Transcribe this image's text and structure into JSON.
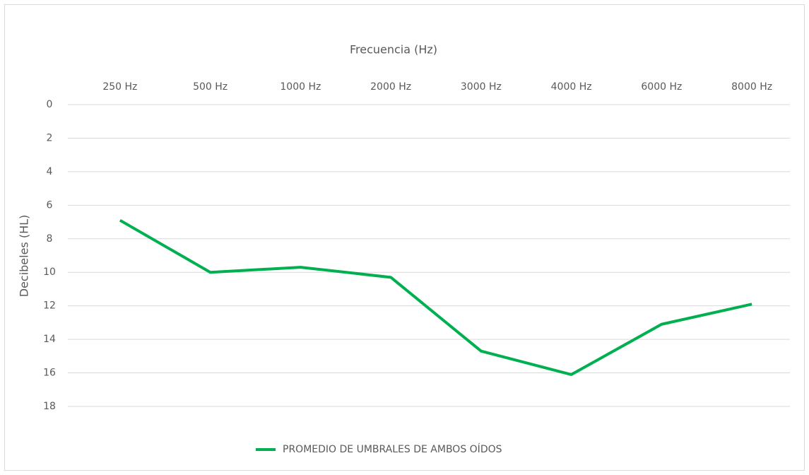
{
  "chart_data": {
    "type": "line",
    "x_label": "Frecuencia (Hz)",
    "y_label": "Decibeles (HL)",
    "categories": [
      "250 Hz",
      "500 Hz",
      "1000 Hz",
      "2000 Hz",
      "3000 Hz",
      "4000 Hz",
      "6000 Hz",
      "8000 Hz"
    ],
    "series": [
      {
        "name": "PROMEDIO DE UMBRALES DE AMBOS OÍDOS",
        "color": "#00b050",
        "values": [
          6.9,
          10.0,
          9.7,
          10.3,
          14.7,
          16.1,
          13.1,
          11.9
        ]
      }
    ],
    "ylim": [
      0,
      18
    ],
    "yticks": [
      0,
      2,
      4,
      6,
      8,
      10,
      12,
      14,
      16,
      18
    ],
    "y_inverted": true,
    "x_axis_position": "top",
    "grid": true,
    "legend": "bottom"
  }
}
